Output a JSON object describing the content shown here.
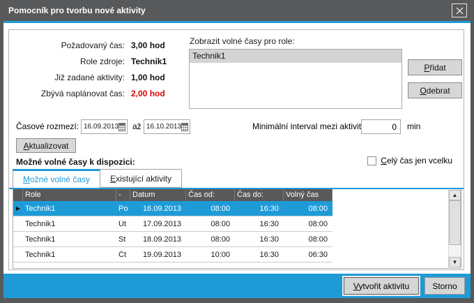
{
  "window": {
    "title": "Pomocník pro tvorbu nové aktivity"
  },
  "summary": {
    "rows": [
      {
        "label": "Požadovaný čas:",
        "value": "3,00 hod",
        "red": false
      },
      {
        "label": "Role zdroje:",
        "value": "Technik1",
        "red": false
      },
      {
        "label": "Již zadané aktivity:",
        "value": "1,00 hod",
        "red": false
      },
      {
        "label": "Zbývá naplánovat čas:",
        "value": "2,00 hod",
        "red": true
      }
    ]
  },
  "roles": {
    "label": "Zobrazit volné časy pro role:",
    "items": [
      "Technik1"
    ],
    "selected_index": 0,
    "add_button": "Přidat",
    "remove_button": "Odebrat"
  },
  "range": {
    "label": "Časové rozmezí:",
    "from": "16.09.2013",
    "to_word": "až",
    "to": "16.10.2013",
    "interval_label": "Minimální interval mezi aktivitami:",
    "interval_value": "0",
    "interval_unit": "min",
    "update_button": "Aktualizovat"
  },
  "available": {
    "label": "Možné volné časy k dispozici:",
    "checkbox_label": "Celý čas jen vcelku",
    "checkbox_checked": false,
    "tabs": [
      {
        "label": "Možné volné časy",
        "active": true
      },
      {
        "label": "Existující aktivity",
        "active": false
      }
    ]
  },
  "table": {
    "columns": [
      "Role",
      "-",
      "Datum",
      "Čas od:",
      "Čas do:",
      "Volný čas"
    ],
    "rows": [
      {
        "role": "Technik1",
        "day": "Po",
        "date": "16.09.2013",
        "from": "08:00",
        "to": "16:30",
        "free": "08:00",
        "selected": true
      },
      {
        "role": "Technik1",
        "day": "Út",
        "date": "17.09.2013",
        "from": "08:00",
        "to": "16:30",
        "free": "08:00",
        "selected": false
      },
      {
        "role": "Technik1",
        "day": "St",
        "date": "18.09.2013",
        "from": "08:00",
        "to": "16:30",
        "free": "08:00",
        "selected": false
      },
      {
        "role": "Technik1",
        "day": "Čt",
        "date": "19.09.2013",
        "from": "10:00",
        "to": "16:30",
        "free": "06:30",
        "selected": false
      }
    ]
  },
  "footer": {
    "create_button": "Vytvořit aktivitu",
    "cancel_button": "Storno"
  },
  "icons": {
    "close": "x-cross",
    "calendar": "calendar-grid",
    "scroll_up": "▲",
    "scroll_down": "▼",
    "row_marker": "▶"
  },
  "colors": {
    "accent": "#1e9bd7",
    "titlebar": "#58595b",
    "table_header": "#595959",
    "warning": "#e00000"
  }
}
